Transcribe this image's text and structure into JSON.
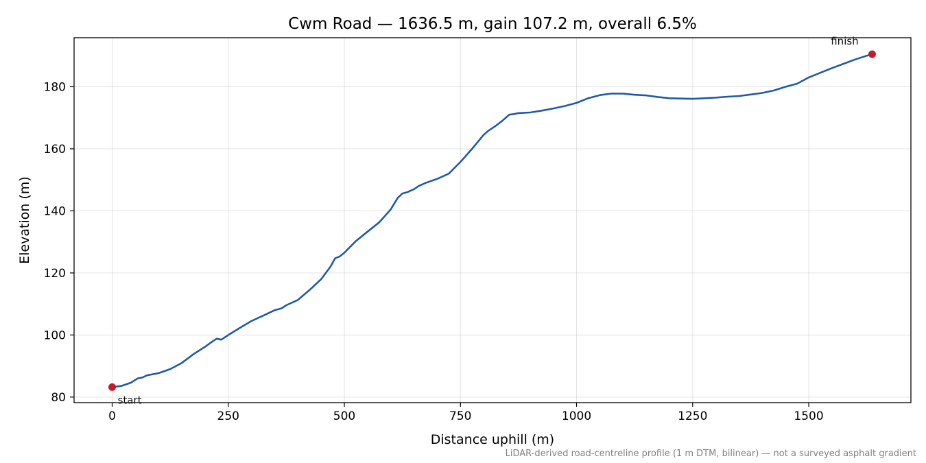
{
  "chart_data": {
    "type": "line",
    "title": "Cwm Road — 1636.5 m, gain 107.2 m, overall 6.5%",
    "xlabel": "Distance uphill (m)",
    "ylabel": "Elevation (m)",
    "xlim": [
      -82,
      1720
    ],
    "ylim": [
      78.2,
      195.8
    ],
    "xticks": [
      0,
      250,
      500,
      750,
      1000,
      1250,
      1500
    ],
    "yticks": [
      80,
      100,
      120,
      140,
      160,
      180
    ],
    "grid": true,
    "colors": {
      "line": "#1f5aa8",
      "marker": "#c8192c"
    },
    "series": [
      {
        "x": [
          0,
          20,
          40,
          55,
          65,
          75,
          100,
          125,
          150,
          175,
          200,
          215,
          225,
          235,
          250,
          275,
          300,
          325,
          350,
          365,
          375,
          400,
          425,
          450,
          470,
          480,
          490,
          500,
          525,
          550,
          575,
          600,
          610,
          615,
          625,
          635,
          650,
          660,
          675,
          700,
          725,
          750,
          775,
          800,
          810,
          825,
          840,
          855,
          865,
          875,
          900,
          925,
          950,
          975,
          1000,
          1025,
          1050,
          1075,
          1100,
          1125,
          1150,
          1175,
          1200,
          1225,
          1250,
          1275,
          1300,
          1325,
          1350,
          1375,
          1400,
          1425,
          1450,
          1465,
          1475,
          1500,
          1525,
          1550,
          1575,
          1600,
          1625,
          1636.5
        ],
        "values": [
          83.2,
          83.6,
          84.6,
          86.0,
          86.3,
          87.0,
          87.7,
          89.0,
          91.0,
          93.8,
          96.2,
          97.8,
          98.8,
          98.5,
          100.0,
          102.3,
          104.5,
          106.2,
          108.0,
          108.6,
          109.6,
          111.3,
          114.5,
          118.0,
          122.0,
          124.7,
          125.3,
          126.5,
          130.3,
          133.3,
          136.3,
          140.5,
          143.0,
          144.2,
          145.6,
          146.0,
          147.0,
          148.0,
          149.0,
          150.3,
          152.0,
          155.8,
          160.0,
          164.5,
          165.8,
          167.3,
          169.0,
          171.0,
          171.2,
          171.5,
          171.7,
          172.3,
          173.0,
          173.8,
          174.8,
          176.3,
          177.3,
          177.8,
          177.8,
          177.4,
          177.2,
          176.7,
          176.3,
          176.2,
          176.1,
          176.3,
          176.5,
          176.8,
          177.0,
          177.5,
          178.0,
          178.8,
          180.0,
          180.6,
          181.0,
          183.0,
          184.5,
          186.0,
          187.4,
          188.8,
          190.0,
          190.5
        ]
      }
    ],
    "annotations": [
      {
        "text": "start",
        "x": 0,
        "y": 83.2
      },
      {
        "text": "finish",
        "x": 1636.5,
        "y": 190.5
      }
    ],
    "footnote": "LiDAR-derived road-centreline profile (1 m DTM, bilinear) — not a surveyed asphalt gradient"
  }
}
